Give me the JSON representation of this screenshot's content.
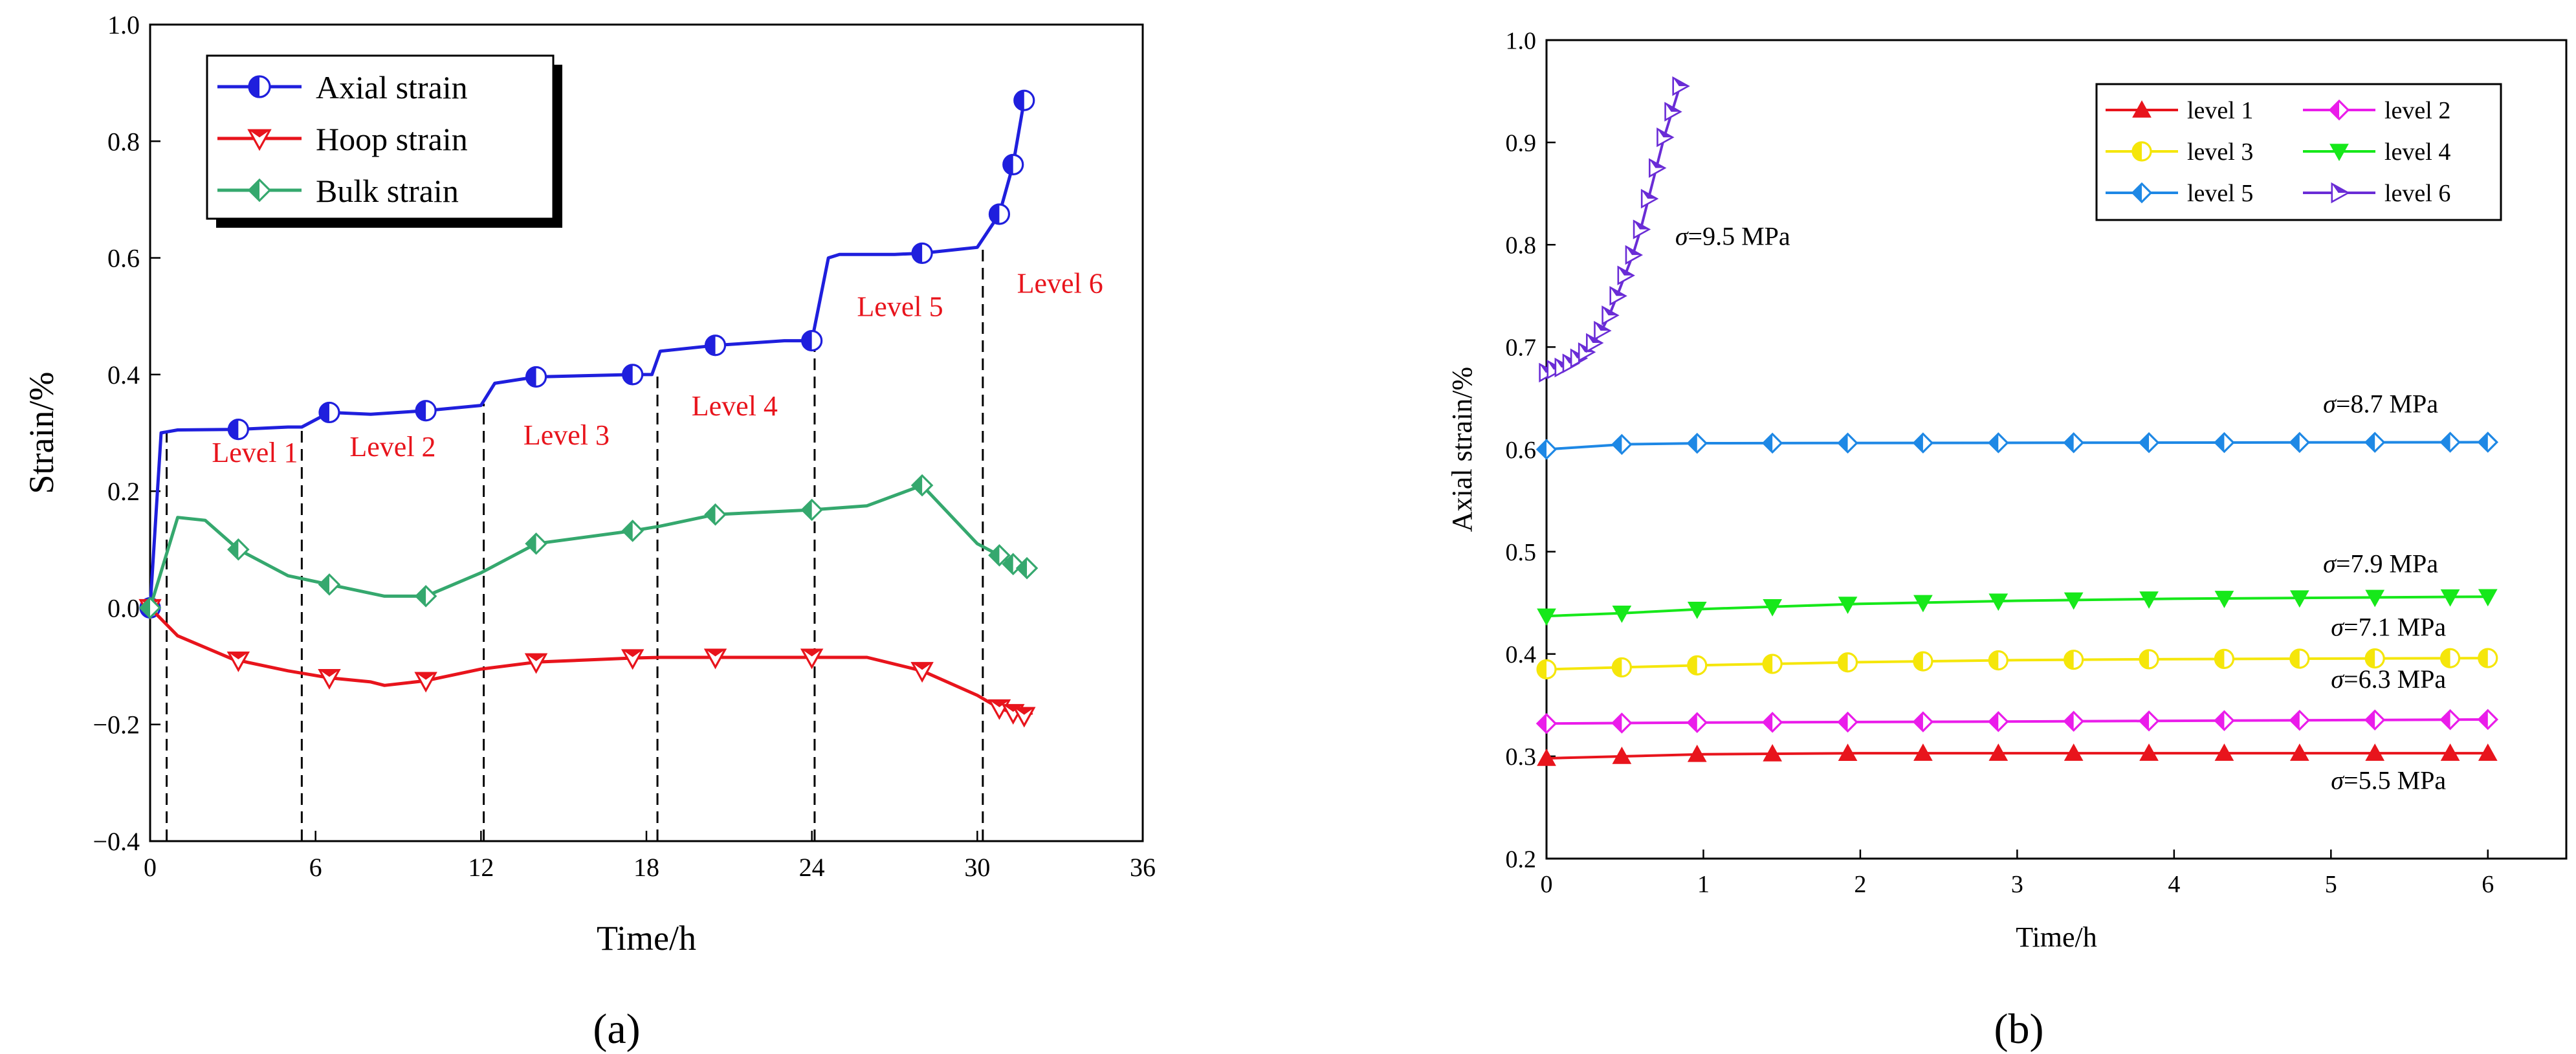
{
  "colors": {
    "axial": "#1f1fdd",
    "hoop": "#e8141c",
    "bulk": "#35a86e",
    "annotation": "#e8141c",
    "l1": "#e8141c",
    "l2": "#ea1cea",
    "l3": "#f5e60a",
    "l4": "#16e81a",
    "l5": "#1e88e5",
    "l6": "#6a2cd6",
    "axis": "#000000"
  },
  "panels": {
    "a_label": "(a)",
    "b_label": "(b)"
  },
  "chart_data": [
    {
      "id": "a",
      "type": "line",
      "xlabel": "Time/h",
      "ylabel": "Strain/%",
      "xlim": [
        0,
        36
      ],
      "ylim": [
        -0.4,
        1.0
      ],
      "xticks": [
        0,
        6,
        12,
        18,
        24,
        30,
        36
      ],
      "xtick_labels": [
        "0",
        "6",
        "12",
        "18",
        "24",
        "30",
        "36"
      ],
      "yticks": [
        -0.4,
        -0.2,
        0.0,
        0.2,
        0.4,
        0.6,
        0.8,
        1.0
      ],
      "ytick_labels": [
        "−0.4",
        "−0.2",
        "0.0",
        "0.2",
        "0.4",
        "0.6",
        "0.8",
        "1.0"
      ],
      "legend_position": "top-left",
      "series": [
        {
          "name": "Axial strain",
          "key": "axial",
          "marker": "circle-half",
          "points": [
            [
              0,
              0
            ],
            [
              0.4,
              0.3
            ],
            [
              1,
              0.305
            ],
            [
              3.2,
              0.306
            ],
            [
              5,
              0.31
            ],
            [
              5.5,
              0.31
            ],
            [
              6.5,
              0.335
            ],
            [
              8,
              0.332
            ],
            [
              10,
              0.338
            ],
            [
              12,
              0.347
            ],
            [
              12.5,
              0.385
            ],
            [
              14,
              0.396
            ],
            [
              17.5,
              0.4
            ],
            [
              18.2,
              0.4
            ],
            [
              18.5,
              0.44
            ],
            [
              20.5,
              0.45
            ],
            [
              23,
              0.458
            ],
            [
              24,
              0.458
            ],
            [
              24.6,
              0.6
            ],
            [
              25,
              0.606
            ],
            [
              27,
              0.606
            ],
            [
              28,
              0.608
            ],
            [
              30,
              0.618
            ],
            [
              30.8,
              0.675
            ],
            [
              31.3,
              0.76
            ],
            [
              31.7,
              0.87
            ]
          ],
          "markers": [
            [
              0,
              0
            ],
            [
              3.2,
              0.306
            ],
            [
              6.5,
              0.335
            ],
            [
              10,
              0.338
            ],
            [
              14,
              0.396
            ],
            [
              17.5,
              0.4
            ],
            [
              20.5,
              0.45
            ],
            [
              24,
              0.458
            ],
            [
              28,
              0.608
            ],
            [
              30.8,
              0.675
            ],
            [
              31.3,
              0.76
            ],
            [
              31.7,
              0.87
            ]
          ]
        },
        {
          "name": "Hoop strain",
          "key": "hoop",
          "marker": "triangle-down-half",
          "points": [
            [
              0,
              0
            ],
            [
              1,
              -0.048
            ],
            [
              3,
              -0.088
            ],
            [
              5,
              -0.108
            ],
            [
              6.5,
              -0.12
            ],
            [
              8,
              -0.127
            ],
            [
              8.5,
              -0.133
            ],
            [
              10,
              -0.125
            ],
            [
              12,
              -0.105
            ],
            [
              14,
              -0.093
            ],
            [
              17.5,
              -0.086
            ],
            [
              18.5,
              -0.085
            ],
            [
              20.5,
              -0.085
            ],
            [
              24,
              -0.085
            ],
            [
              26,
              -0.085
            ],
            [
              28,
              -0.108
            ],
            [
              30,
              -0.15
            ],
            [
              30.8,
              -0.172
            ],
            [
              31.3,
              -0.18
            ],
            [
              31.7,
              -0.185
            ],
            [
              32,
              -0.18
            ]
          ],
          "markers": [
            [
              0,
              0
            ],
            [
              3.2,
              -0.09
            ],
            [
              6.5,
              -0.12
            ],
            [
              10,
              -0.125
            ],
            [
              14,
              -0.093
            ],
            [
              17.5,
              -0.086
            ],
            [
              20.5,
              -0.085
            ],
            [
              24,
              -0.085
            ],
            [
              28,
              -0.108
            ],
            [
              30.8,
              -0.172
            ],
            [
              31.3,
              -0.18
            ],
            [
              31.7,
              -0.185
            ]
          ]
        },
        {
          "name": "Bulk strain",
          "key": "bulk",
          "marker": "diamond-half",
          "points": [
            [
              0,
              0
            ],
            [
              1,
              0.155
            ],
            [
              2,
              0.15
            ],
            [
              3.2,
              0.1
            ],
            [
              5,
              0.055
            ],
            [
              6.5,
              0.04
            ],
            [
              8.5,
              0.02
            ],
            [
              10,
              0.02
            ],
            [
              12,
              0.06
            ],
            [
              14,
              0.11
            ],
            [
              17.5,
              0.132
            ],
            [
              18.5,
              0.14
            ],
            [
              20.5,
              0.16
            ],
            [
              24,
              0.168
            ],
            [
              26,
              0.175
            ],
            [
              28,
              0.21
            ],
            [
              30,
              0.11
            ],
            [
              30.8,
              0.09
            ],
            [
              31.3,
              0.075
            ],
            [
              31.8,
              0.068
            ]
          ],
          "markers": [
            [
              0,
              0
            ],
            [
              3.2,
              0.1
            ],
            [
              6.5,
              0.04
            ],
            [
              10,
              0.02
            ],
            [
              14,
              0.11
            ],
            [
              17.5,
              0.132
            ],
            [
              20.5,
              0.16
            ],
            [
              24,
              0.168
            ],
            [
              28,
              0.21
            ],
            [
              30.8,
              0.09
            ],
            [
              31.3,
              0.075
            ],
            [
              31.8,
              0.068
            ]
          ]
        }
      ],
      "dividers": [
        0.6,
        5.5,
        12.1,
        18.4,
        24.1,
        30.2
      ],
      "annotations": [
        {
          "text": "Level 1",
          "x": 3.8,
          "y": 0.25
        },
        {
          "text": "Level 2",
          "x": 8.8,
          "y": 0.26
        },
        {
          "text": "Level 3",
          "x": 15.1,
          "y": 0.28
        },
        {
          "text": "Level 4",
          "x": 21.2,
          "y": 0.33
        },
        {
          "text": "Level 5",
          "x": 27.2,
          "y": 0.5
        },
        {
          "text": "Level 6",
          "x": 33.0,
          "y": 0.54
        }
      ]
    },
    {
      "id": "b",
      "type": "line",
      "xlabel": "Time/h",
      "ylabel": "Axial strain/%",
      "xlim": [
        0,
        6.5
      ],
      "ylim": [
        0.2,
        1.0
      ],
      "xticks": [
        0,
        1,
        2,
        3,
        4,
        5,
        6
      ],
      "xtick_labels": [
        "0",
        "1",
        "2",
        "3",
        "4",
        "5",
        "6"
      ],
      "yticks": [
        0.2,
        0.3,
        0.4,
        0.5,
        0.6,
        0.7,
        0.8,
        0.9,
        1.0
      ],
      "ytick_labels": [
        "0.2",
        "0.3",
        "0.4",
        "0.5",
        "0.6",
        "0.7",
        "0.8",
        "0.9",
        "1.0"
      ],
      "legend_position": "top-right",
      "sigma_symbol": "σ",
      "series": [
        {
          "name": "level 1",
          "key": "l1",
          "marker": "triangle-up",
          "points": [
            [
              0,
              0.298
            ],
            [
              0.5,
              0.3
            ],
            [
              1,
              0.302
            ],
            [
              2,
              0.303
            ],
            [
              6,
              0.303
            ]
          ],
          "marker_step": 0.48
        },
        {
          "name": "level 2",
          "key": "l2",
          "marker": "diamond-left",
          "points": [
            [
              0,
              0.332
            ],
            [
              1,
              0.333
            ],
            [
              3,
              0.334
            ],
            [
              6,
              0.336
            ]
          ],
          "marker_step": 0.48
        },
        {
          "name": "level 3",
          "key": "l3",
          "marker": "circle-half",
          "points": [
            [
              0,
              0.385
            ],
            [
              0.5,
              0.387
            ],
            [
              1,
              0.389
            ],
            [
              2,
              0.392
            ],
            [
              3,
              0.394
            ],
            [
              4,
              0.395
            ],
            [
              6,
              0.396
            ]
          ],
          "marker_step": 0.48
        },
        {
          "name": "level 4",
          "key": "l4",
          "marker": "triangle-down",
          "points": [
            [
              0,
              0.437
            ],
            [
              0.5,
              0.44
            ],
            [
              1,
              0.444
            ],
            [
              2,
              0.449
            ],
            [
              3,
              0.452
            ],
            [
              4,
              0.454
            ],
            [
              6,
              0.456
            ]
          ],
          "marker_step": 0.48
        },
        {
          "name": "level 5",
          "key": "l5",
          "marker": "diamond-half",
          "points": [
            [
              0,
              0.6
            ],
            [
              0.5,
              0.605
            ],
            [
              1,
              0.606
            ],
            [
              6,
              0.607
            ]
          ],
          "marker_step": 0.48
        },
        {
          "name": "level 6",
          "key": "l6",
          "marker": "triangle-right-half",
          "points": [
            [
              0,
              0.675
            ],
            [
              0.05,
              0.678
            ],
            [
              0.1,
              0.68
            ],
            [
              0.15,
              0.684
            ],
            [
              0.2,
              0.689
            ],
            [
              0.25,
              0.695
            ],
            [
              0.3,
              0.704
            ],
            [
              0.35,
              0.716
            ],
            [
              0.4,
              0.731
            ],
            [
              0.45,
              0.75
            ],
            [
              0.5,
              0.77
            ],
            [
              0.55,
              0.79
            ],
            [
              0.6,
              0.815
            ],
            [
              0.65,
              0.845
            ],
            [
              0.7,
              0.875
            ],
            [
              0.75,
              0.905
            ],
            [
              0.8,
              0.93
            ],
            [
              0.85,
              0.955
            ]
          ],
          "marker_step": 0.05
        }
      ],
      "annotations": [
        {
          "sigma": "σ",
          "text": "=9.5 MPa",
          "x": 0.82,
          "y": 0.8
        },
        {
          "sigma": "σ",
          "text": "=8.7 MPa",
          "x": 4.95,
          "y": 0.636
        },
        {
          "sigma": "σ",
          "text": "=7.9 MPa",
          "x": 4.95,
          "y": 0.48
        },
        {
          "sigma": "σ",
          "text": "=7.1 MPa",
          "x": 5.0,
          "y": 0.418
        },
        {
          "sigma": "σ",
          "text": "=6.3 MPa",
          "x": 5.0,
          "y": 0.367
        },
        {
          "sigma": "σ",
          "text": "=5.5 MPa",
          "x": 5.0,
          "y": 0.268
        }
      ]
    }
  ]
}
